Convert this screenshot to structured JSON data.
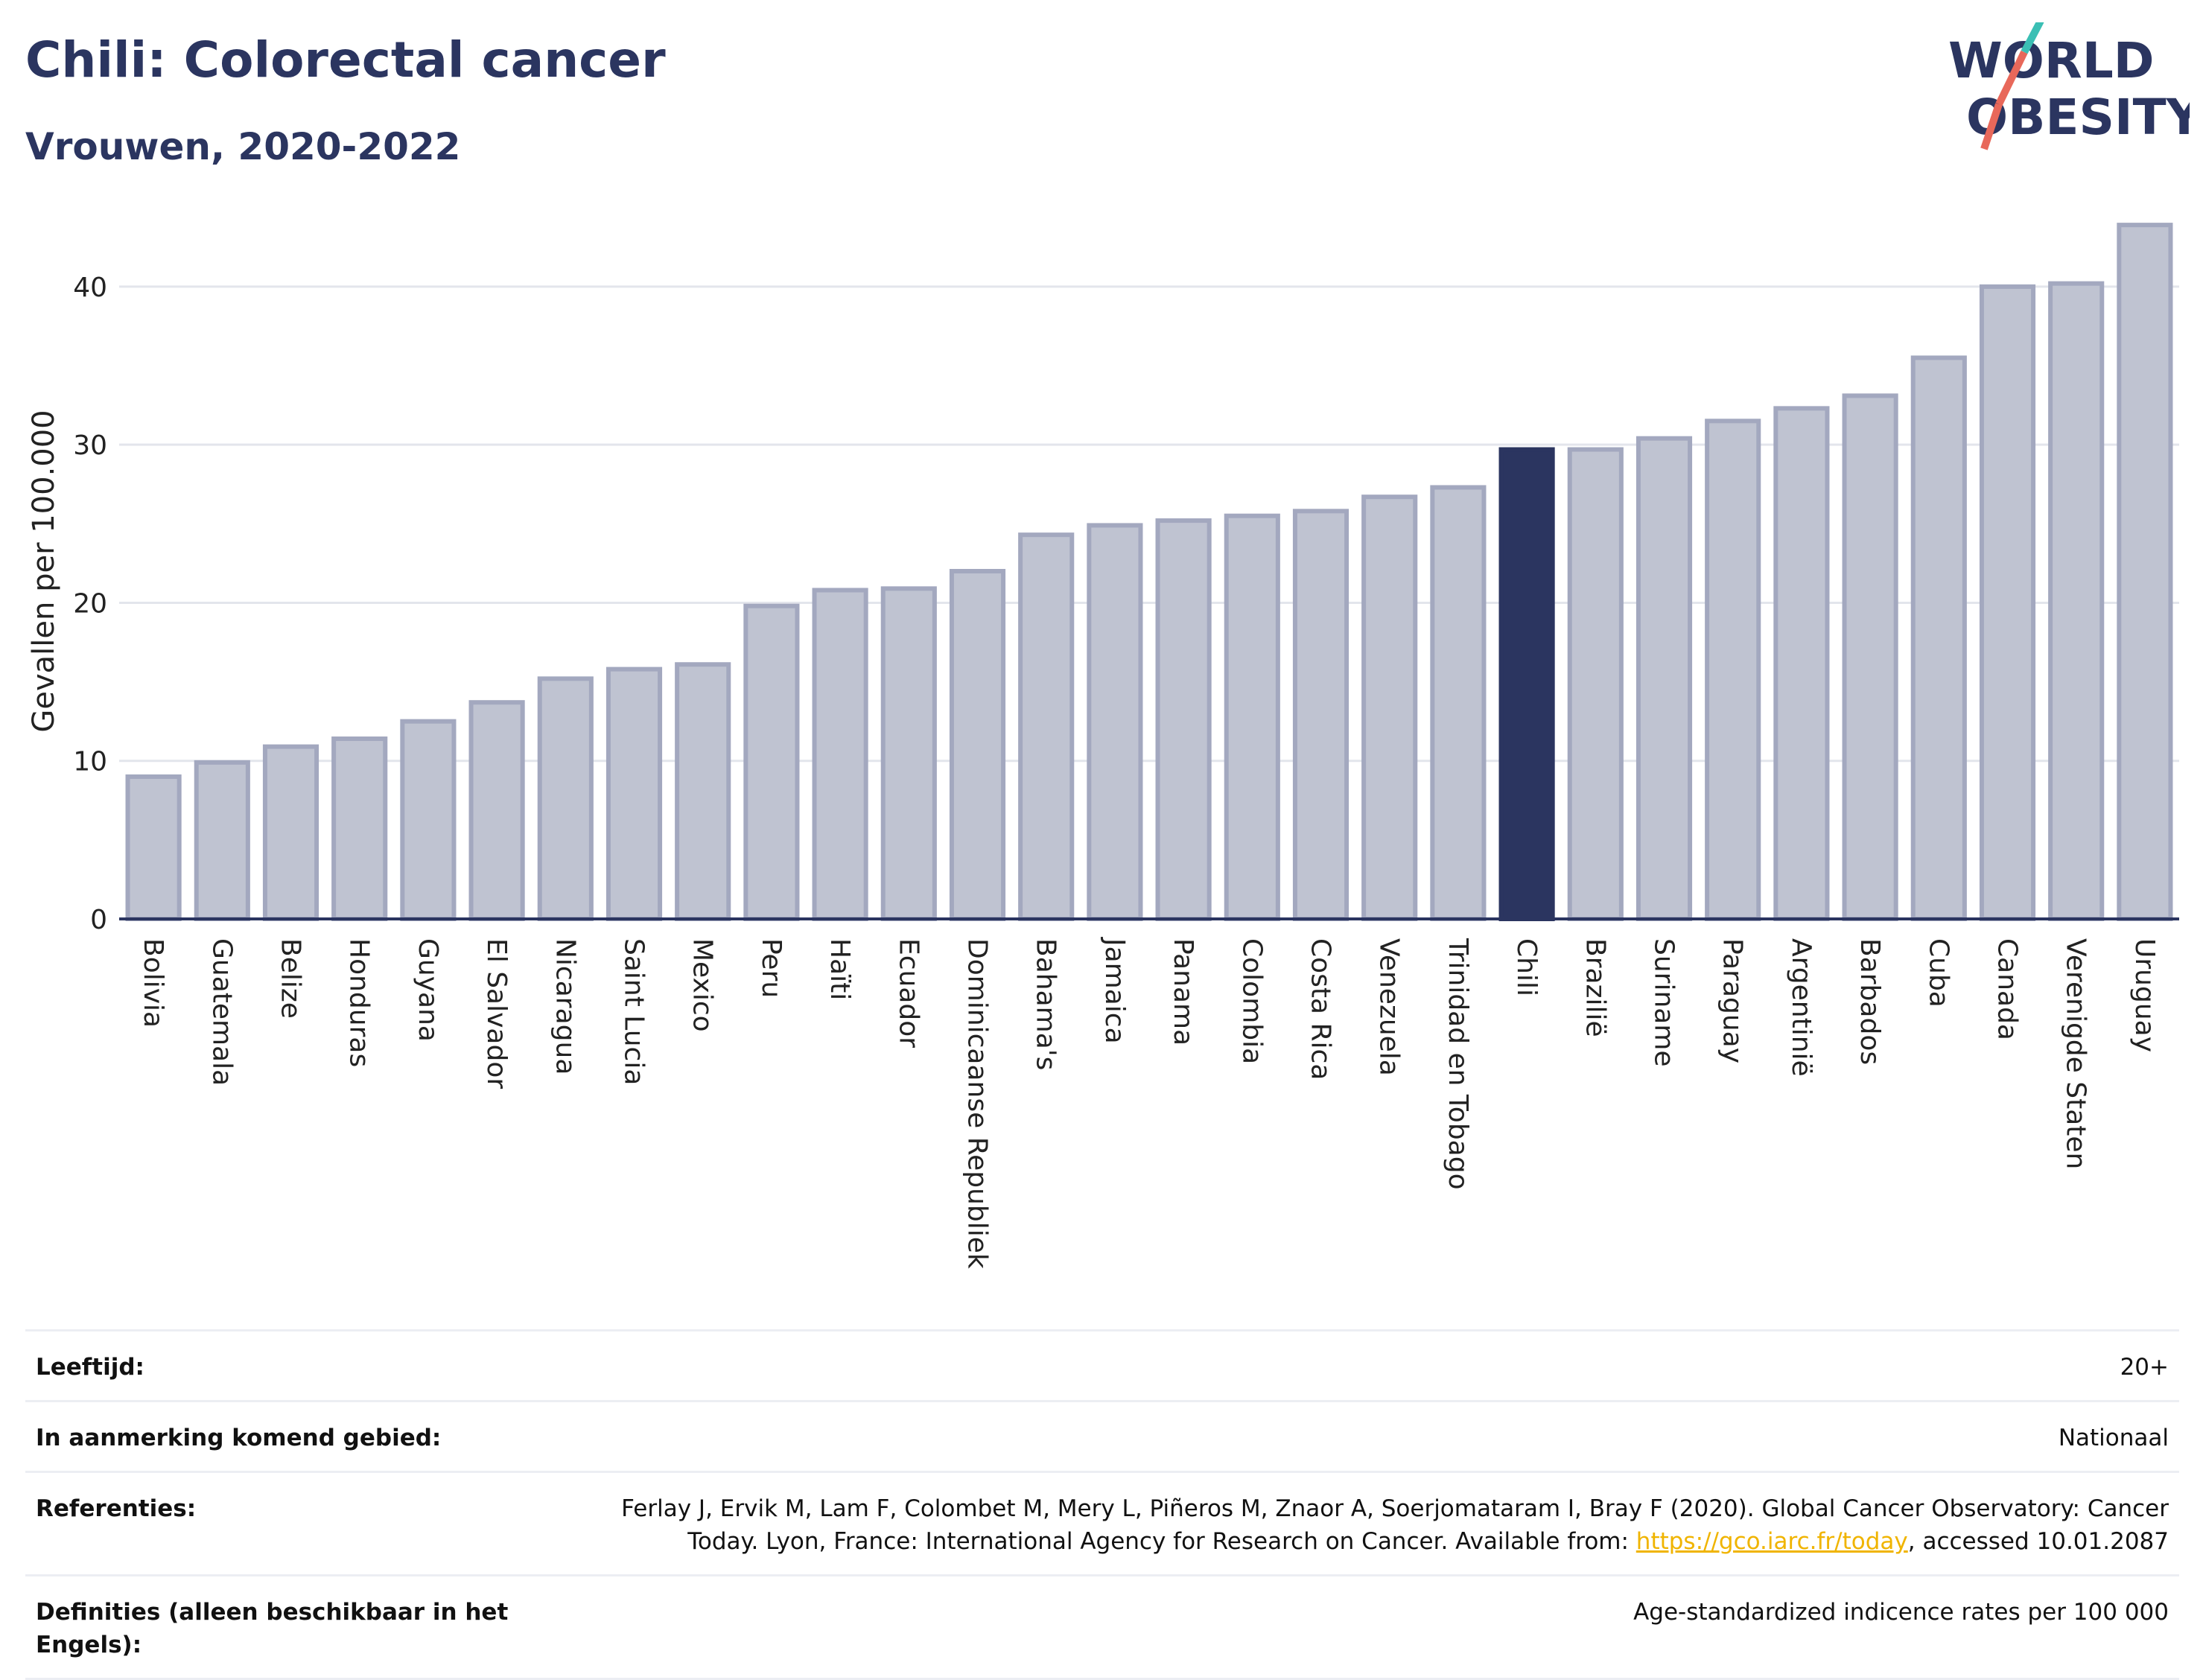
{
  "header": {
    "title": "Chili: Colorectal cancer",
    "subtitle": "Vrouwen, 2020-2022"
  },
  "logo": {
    "line1": "WORLD",
    "line2": "OBESITY"
  },
  "colors": {
    "highlight": "#2b3560",
    "bar": "#bfc3d1",
    "bar_border": "#a3a8bf",
    "grid": "#e3e5ec",
    "link": "#f0b400"
  },
  "chart_data": {
    "type": "bar",
    "ylabel": "Gevallen per 100.000",
    "ylim": [
      0,
      44
    ],
    "yticks": [
      0,
      10,
      20,
      30,
      40
    ],
    "grid": true,
    "highlight": "Chili",
    "categories": [
      "Bolivia",
      "Guatemala",
      "Belize",
      "Honduras",
      "Guyana",
      "El Salvador",
      "Nicaragua",
      "Saint Lucia",
      "Mexico",
      "Peru",
      "Haïti",
      "Ecuador",
      "Dominicaanse Republiek",
      "Bahama's",
      "Jamaica",
      "Panama",
      "Colombia",
      "Costa Rica",
      "Venezuela",
      "Trinidad en Tobago",
      "Chili",
      "Brazilië",
      "Suriname",
      "Paraguay",
      "Argentinië",
      "Barbados",
      "Cuba",
      "Canada",
      "Verenigde Staten",
      "Uruguay"
    ],
    "values": [
      9.0,
      9.9,
      10.9,
      11.4,
      12.5,
      13.7,
      15.2,
      15.8,
      16.1,
      19.8,
      20.8,
      20.9,
      22.0,
      24.3,
      24.9,
      25.2,
      25.5,
      25.8,
      26.7,
      27.3,
      29.7,
      29.7,
      30.4,
      31.5,
      32.3,
      33.1,
      35.5,
      40.0,
      40.2,
      43.9
    ]
  },
  "footer": {
    "rows": [
      {
        "label": "Leeftijd:",
        "value": "20+"
      },
      {
        "label": "In aanmerking komend gebied:",
        "value": "Nationaal"
      },
      {
        "label": "Definities (alleen beschikbaar in het Engels):",
        "value": "Age-standardized indicence rates per 100 000"
      }
    ],
    "references": {
      "label": "Referenties:",
      "text_before": "Ferlay J, Ervik M, Lam F, Colombet M, Mery L, Piñeros M, Znaor A, Soerjomataram I, Bray F (2020). Global Cancer Observatory: Cancer Today. Lyon, France: International Agency for Research on Cancer. Available from: ",
      "link": "https://gco.iarc.fr/today",
      "text_after": ", accessed 10.01.2087"
    }
  }
}
